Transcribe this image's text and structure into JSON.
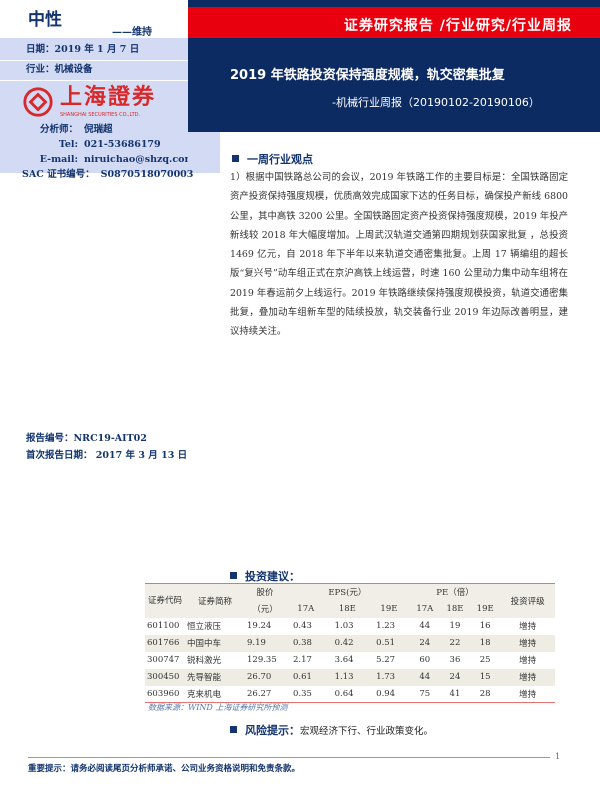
{
  "header": {
    "rating": "中性",
    "rating_change": "——维持",
    "report_type": "证券研究报告 /行业研究/行业周报",
    "title": "2019 年铁路投资保持强度规模，轨交密集批复",
    "subtitle": "-机械行业周报（20190102-20190106）"
  },
  "sidebar": {
    "date": "日期：2019 年 1 月 7 日",
    "industry": "行业：机械设备",
    "logo_text": "上海證券",
    "logo_en": "SHANGHAI SECURITIES CO.,LTD.",
    "analyst_label": "分析师：",
    "analyst": "倪瑞超",
    "tel_label": "Tel:",
    "tel": "021-53686179",
    "email_label": "E-mail:",
    "email": "niruichao@shzq.com",
    "sac_label": "SAC 证书编号：",
    "sac": "S0870518070003",
    "report_no": "报告编号：NRC19-AIT02",
    "first_date": "首次报告日期：  2017 年 3 月 13 日"
  },
  "section1": {
    "title": "一周行业观点",
    "body": "1）根据中国铁路总公司的会议，2019 年铁路工作的主要目标是：全国铁路固定资产投资保持强度规模，优质高效完成国家下达的任务目标，确保投产新线 6800 公里，其中高铁 3200 公里。全国铁路固定资产投资保持强度规模，2019 年投产新线较 2018 年大幅度增加。上周武汉轨道交通第四期规划获国家批复 ，总投资 1469 亿元，自 2018 年下半年以来轨道交通密集批复。上周 17 辆编组的超长版“复兴号”动车组正式在京沪高铁上线运营，时速 160 公里动力集中动车组将在 2019 年春运前夕上线运行。2019 年铁路继续保持强度规模投资，轨道交通密集批复，叠加动车组新车型的陆续投放，轨交装备行业 2019 年边际改善明显，建议持续关注。"
  },
  "section2": {
    "title": "投资建议：",
    "headers": {
      "code": "证券代码",
      "name": "证券简称",
      "price": "股价",
      "price_unit": "（元）",
      "eps": "EPS(元）",
      "pe": "PE（倍）",
      "rating": "投资评级",
      "years": [
        "17A",
        "18E",
        "19E"
      ]
    },
    "rows": [
      [
        "601100",
        "恒立液压",
        "19.24",
        "0.43",
        "1.03",
        "1.23",
        "44",
        "19",
        "16",
        "增持"
      ],
      [
        "601766",
        "中国中车",
        "9.19",
        "0.38",
        "0.42",
        "0.51",
        "24",
        "22",
        "18",
        "增持"
      ],
      [
        "300747",
        "锐科激光",
        "129.35",
        "2.17",
        "3.64",
        "5.27",
        "60",
        "36",
        "25",
        "增持"
      ],
      [
        "300450",
        "先导智能",
        "26.70",
        "0.61",
        "1.13",
        "1.73",
        "44",
        "24",
        "15",
        "增持"
      ],
      [
        "603960",
        "克来机电",
        "26.27",
        "0.35",
        "0.64",
        "0.94",
        "75",
        "41",
        "28",
        "增持"
      ]
    ],
    "source": "数据来源：WIND  上海证券研究所预测"
  },
  "section3": {
    "title": "风险提示：",
    "body": "宏观经济下行、行业政策变化。"
  },
  "footer": {
    "notice": "重要提示：请务必阅读尾页分析师承诺、公司业务资格说明和免责条款。",
    "page": "1"
  },
  "colors": {
    "navy": "#0d2b63",
    "red": "#e8000f",
    "panel": "#d3daf4"
  }
}
